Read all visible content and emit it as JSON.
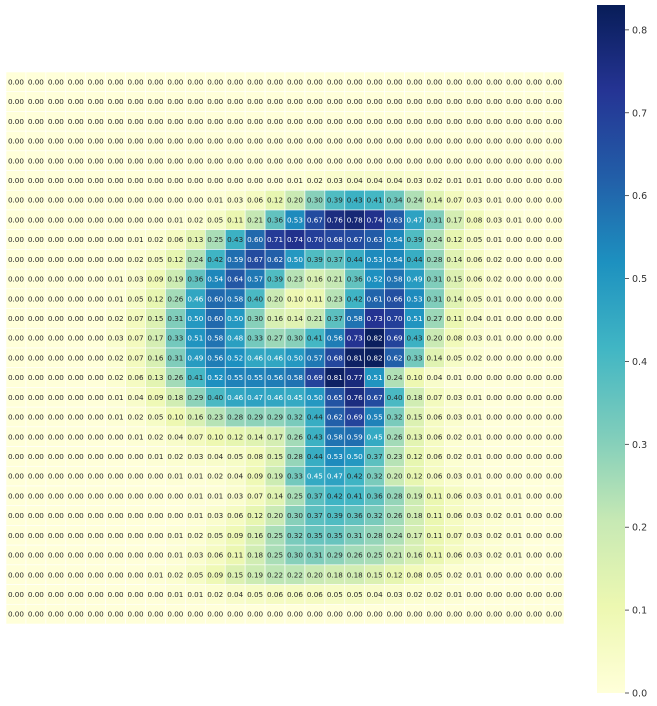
{
  "chart_data": {
    "type": "heatmap",
    "title": "",
    "xlabel": "",
    "ylabel": "",
    "value_format": "0.00",
    "colormap": "YlGnBu",
    "colormap_stops": [
      "#ffffd9",
      "#edf8b1",
      "#c7e9b4",
      "#7fcdbb",
      "#41b6c4",
      "#1d91c0",
      "#225ea8",
      "#253494",
      "#081d58"
    ],
    "vmin": 0.0,
    "vmax": 0.83,
    "cell_border_color": "#ffffff",
    "colorbar": {
      "ticks": [
        0.0,
        0.1,
        0.2,
        0.3,
        0.4,
        0.5,
        0.6,
        0.7,
        0.8
      ],
      "tick_labels": [
        "0.0",
        "0.1",
        "0.2",
        "0.3",
        "0.4",
        "0.5",
        "0.6",
        "0.7",
        "0.8"
      ]
    },
    "rows": 28,
    "cols": 28,
    "values": [
      [
        0,
        0,
        0,
        0,
        0,
        0,
        0,
        0,
        0,
        0,
        0,
        0,
        0,
        0,
        0,
        0,
        0,
        0,
        0,
        0,
        0,
        0,
        0,
        0,
        0,
        0,
        0,
        0
      ],
      [
        0,
        0,
        0,
        0,
        0,
        0,
        0,
        0,
        0,
        0,
        0,
        0,
        0,
        0,
        0,
        0,
        0,
        0,
        0,
        0,
        0,
        0,
        0,
        0,
        0,
        0,
        0,
        0
      ],
      [
        0,
        0,
        0,
        0,
        0,
        0,
        0,
        0,
        0,
        0,
        0,
        0,
        0,
        0,
        0,
        0,
        0,
        0,
        0,
        0,
        0,
        0,
        0,
        0,
        0,
        0,
        0,
        0
      ],
      [
        0,
        0,
        0,
        0,
        0,
        0,
        0,
        0,
        0,
        0,
        0,
        0,
        0,
        0,
        0,
        0,
        0,
        0,
        0,
        0,
        0,
        0,
        0,
        0,
        0,
        0,
        0,
        0
      ],
      [
        0,
        0,
        0,
        0,
        0,
        0,
        0,
        0,
        0,
        0,
        0,
        0,
        0,
        0,
        0,
        0,
        0,
        0,
        0,
        0,
        0,
        0,
        0,
        0,
        0,
        0,
        0,
        0
      ],
      [
        0,
        0,
        0,
        0,
        0,
        0,
        0,
        0,
        0,
        0,
        0,
        0,
        0,
        0,
        0.01,
        0.02,
        0.03,
        0.04,
        0.04,
        0.04,
        0.03,
        0.02,
        0.01,
        0.01,
        0,
        0,
        0,
        0
      ],
      [
        0,
        0,
        0,
        0,
        0,
        0,
        0,
        0,
        0,
        0,
        0.01,
        0.03,
        0.06,
        0.12,
        0.2,
        0.3,
        0.39,
        0.43,
        0.41,
        0.34,
        0.24,
        0.14,
        0.07,
        0.03,
        0.01,
        0,
        0,
        0
      ],
      [
        0,
        0,
        0,
        0,
        0,
        0,
        0,
        0,
        0.01,
        0.02,
        0.05,
        0.11,
        0.21,
        0.36,
        0.53,
        0.67,
        0.76,
        0.78,
        0.74,
        0.63,
        0.47,
        0.31,
        0.17,
        0.08,
        0.03,
        0.01,
        0,
        0
      ],
      [
        0,
        0,
        0,
        0,
        0,
        0,
        0.01,
        0.02,
        0.06,
        0.13,
        0.25,
        0.43,
        0.6,
        0.71,
        0.74,
        0.7,
        0.68,
        0.67,
        0.63,
        0.54,
        0.39,
        0.24,
        0.12,
        0.05,
        0.01,
        0,
        0,
        0
      ],
      [
        0,
        0,
        0,
        0,
        0,
        0,
        0.02,
        0.05,
        0.12,
        0.24,
        0.42,
        0.59,
        0.67,
        0.62,
        0.5,
        0.39,
        0.37,
        0.44,
        0.53,
        0.54,
        0.44,
        0.28,
        0.14,
        0.06,
        0.02,
        0,
        0,
        0
      ],
      [
        0,
        0,
        0,
        0,
        0,
        0.01,
        0.03,
        0.09,
        0.19,
        0.36,
        0.54,
        0.64,
        0.57,
        0.39,
        0.23,
        0.16,
        0.21,
        0.36,
        0.52,
        0.58,
        0.49,
        0.31,
        0.15,
        0.06,
        0.02,
        0,
        0,
        0
      ],
      [
        0,
        0,
        0,
        0,
        0,
        0.01,
        0.05,
        0.12,
        0.26,
        0.46,
        0.6,
        0.58,
        0.4,
        0.2,
        0.1,
        0.11,
        0.23,
        0.42,
        0.61,
        0.66,
        0.53,
        0.31,
        0.14,
        0.05,
        0.01,
        0,
        0,
        0
      ],
      [
        0,
        0,
        0,
        0,
        0,
        0.02,
        0.07,
        0.15,
        0.31,
        0.5,
        0.6,
        0.5,
        0.3,
        0.16,
        0.14,
        0.21,
        0.37,
        0.58,
        0.73,
        0.7,
        0.51,
        0.27,
        0.11,
        0.04,
        0.01,
        0,
        0,
        0
      ],
      [
        0,
        0,
        0,
        0,
        0,
        0.03,
        0.07,
        0.17,
        0.33,
        0.51,
        0.58,
        0.48,
        0.33,
        0.27,
        0.3,
        0.41,
        0.56,
        0.73,
        0.82,
        0.69,
        0.43,
        0.2,
        0.08,
        0.03,
        0.01,
        0,
        0,
        0
      ],
      [
        0,
        0,
        0,
        0,
        0,
        0.02,
        0.07,
        0.16,
        0.31,
        0.49,
        0.56,
        0.52,
        0.46,
        0.46,
        0.5,
        0.57,
        0.68,
        0.81,
        0.82,
        0.62,
        0.33,
        0.14,
        0.05,
        0.02,
        0,
        0,
        0,
        0
      ],
      [
        0,
        0,
        0,
        0,
        0,
        0.02,
        0.06,
        0.13,
        0.26,
        0.41,
        0.52,
        0.55,
        0.55,
        0.56,
        0.58,
        0.69,
        0.81,
        0.77,
        0.51,
        0.24,
        0.1,
        0.04,
        0.01,
        0,
        0,
        0,
        0,
        0
      ],
      [
        0,
        0,
        0,
        0,
        0,
        0.01,
        0.04,
        0.09,
        0.18,
        0.29,
        0.4,
        0.46,
        0.47,
        0.46,
        0.45,
        0.5,
        0.65,
        0.76,
        0.67,
        0.4,
        0.18,
        0.07,
        0.03,
        0.01,
        0,
        0,
        0,
        0
      ],
      [
        0,
        0,
        0,
        0,
        0,
        0.01,
        0.02,
        0.05,
        0.1,
        0.16,
        0.23,
        0.28,
        0.29,
        0.29,
        0.32,
        0.44,
        0.62,
        0.69,
        0.55,
        0.32,
        0.15,
        0.06,
        0.03,
        0.01,
        0,
        0,
        0,
        0
      ],
      [
        0,
        0,
        0,
        0,
        0,
        0,
        0.01,
        0.02,
        0.04,
        0.07,
        0.1,
        0.12,
        0.14,
        0.17,
        0.26,
        0.43,
        0.58,
        0.59,
        0.45,
        0.26,
        0.13,
        0.06,
        0.02,
        0.01,
        0,
        0,
        0,
        0
      ],
      [
        0,
        0,
        0,
        0,
        0,
        0,
        0,
        0.01,
        0.02,
        0.03,
        0.04,
        0.05,
        0.08,
        0.15,
        0.28,
        0.44,
        0.53,
        0.5,
        0.37,
        0.23,
        0.12,
        0.06,
        0.02,
        0.01,
        0,
        0,
        0,
        0
      ],
      [
        0,
        0,
        0,
        0,
        0,
        0,
        0,
        0,
        0.01,
        0.01,
        0.02,
        0.04,
        0.09,
        0.19,
        0.33,
        0.45,
        0.47,
        0.42,
        0.32,
        0.2,
        0.12,
        0.06,
        0.03,
        0.01,
        0,
        0,
        0,
        0
      ],
      [
        0,
        0,
        0,
        0,
        0,
        0,
        0,
        0,
        0,
        0.01,
        0.01,
        0.03,
        0.07,
        0.14,
        0.25,
        0.37,
        0.42,
        0.41,
        0.36,
        0.28,
        0.19,
        0.11,
        0.06,
        0.03,
        0.01,
        0.01,
        0,
        0
      ],
      [
        0,
        0,
        0,
        0,
        0,
        0,
        0,
        0,
        0,
        0.01,
        0.03,
        0.06,
        0.12,
        0.2,
        0.3,
        0.37,
        0.39,
        0.36,
        0.32,
        0.26,
        0.18,
        0.11,
        0.06,
        0.03,
        0.02,
        0.01,
        0,
        0
      ],
      [
        0,
        0,
        0,
        0,
        0,
        0,
        0,
        0,
        0.01,
        0.02,
        0.05,
        0.09,
        0.16,
        0.25,
        0.32,
        0.35,
        0.35,
        0.31,
        0.28,
        0.24,
        0.17,
        0.11,
        0.07,
        0.03,
        0.02,
        0.01,
        0,
        0
      ],
      [
        0,
        0,
        0,
        0,
        0,
        0,
        0,
        0,
        0.01,
        0.03,
        0.06,
        0.11,
        0.18,
        0.25,
        0.3,
        0.31,
        0.29,
        0.26,
        0.25,
        0.21,
        0.16,
        0.11,
        0.06,
        0.03,
        0.02,
        0.01,
        0,
        0
      ],
      [
        0,
        0,
        0,
        0,
        0,
        0,
        0,
        0.01,
        0.02,
        0.05,
        0.09,
        0.15,
        0.19,
        0.22,
        0.22,
        0.2,
        0.18,
        0.18,
        0.15,
        0.12,
        0.08,
        0.05,
        0.02,
        0.01,
        0,
        0,
        0,
        0
      ],
      [
        0,
        0,
        0,
        0,
        0,
        0,
        0,
        0,
        0.01,
        0.01,
        0.02,
        0.04,
        0.05,
        0.06,
        0.06,
        0.06,
        0.05,
        0.05,
        0.04,
        0.03,
        0.02,
        0.02,
        0.01,
        0,
        0,
        0,
        0,
        0
      ],
      [
        0,
        0,
        0,
        0,
        0,
        0,
        0,
        0,
        0,
        0,
        0,
        0,
        0,
        0,
        0,
        0,
        0,
        0,
        0,
        0,
        0,
        0,
        0,
        0,
        0,
        0,
        0,
        0
      ]
    ]
  }
}
